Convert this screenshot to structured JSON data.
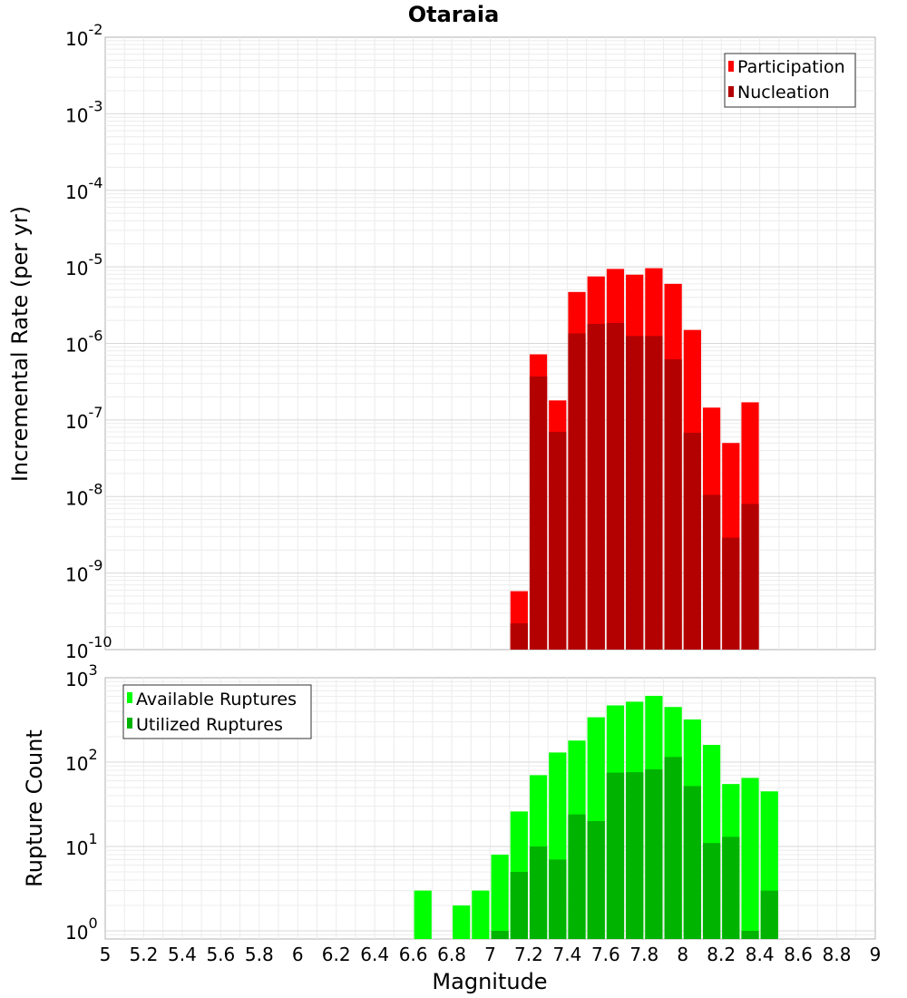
{
  "chart_data": [
    {
      "type": "bar",
      "title": "Otaraia",
      "ylabel": "Incremental Rate (per yr)",
      "yscale": "log",
      "ylim": [
        1e-10,
        0.01
      ],
      "xlim": [
        5,
        9
      ],
      "legend_position": "top-right",
      "x": [
        7.15,
        7.25,
        7.35,
        7.45,
        7.55,
        7.65,
        7.75,
        7.85,
        7.95,
        8.05,
        8.15,
        8.25,
        8.35
      ],
      "series": [
        {
          "name": "Participation",
          "color": "#ff0000",
          "values": [
            5.8e-10,
            7.2e-07,
            1.8e-07,
            4.7e-06,
            7.5e-06,
            9.4e-06,
            7.9e-06,
            9.6e-06,
            6e-06,
            1.5e-06,
            1.45e-07,
            5e-08,
            1.7e-07
          ]
        },
        {
          "name": "Nucleation",
          "color": "#b30000",
          "values": [
            2.2e-10,
            3.7e-07,
            7e-08,
            1.35e-06,
            1.8e-06,
            1.85e-06,
            1.25e-06,
            1.25e-06,
            6.2e-07,
            6.8e-08,
            1.05e-08,
            2.9e-09,
            8e-09
          ]
        }
      ]
    },
    {
      "type": "bar",
      "title": "",
      "xlabel": "Magnitude",
      "ylabel": "Rupture Count",
      "yscale": "log",
      "ylim": [
        0.8,
        1000
      ],
      "xlim": [
        5,
        9
      ],
      "legend_position": "top-left",
      "x": [
        6.65,
        6.75,
        6.85,
        6.95,
        7.05,
        7.15,
        7.25,
        7.35,
        7.45,
        7.55,
        7.65,
        7.75,
        7.85,
        7.95,
        8.05,
        8.15,
        8.25,
        8.35,
        8.45
      ],
      "series": [
        {
          "name": "Available Ruptures",
          "color": "#00ff00",
          "values": [
            3,
            0,
            2,
            3,
            8,
            26,
            70,
            130,
            180,
            340,
            470,
            520,
            610,
            450,
            320,
            160,
            55,
            65,
            45
          ]
        },
        {
          "name": "Utilized Ruptures",
          "color": "#00b300",
          "values": [
            0,
            0,
            0,
            0,
            1,
            5,
            10,
            7,
            24,
            20,
            75,
            76,
            82,
            115,
            52,
            11,
            13,
            1,
            3
          ]
        }
      ],
      "x_ticks": [
        "5",
        "5.2",
        "5.4",
        "5.6",
        "5.8",
        "6",
        "6.2",
        "6.4",
        "6.6",
        "6.8",
        "7",
        "7.2",
        "7.4",
        "7.6",
        "7.8",
        "8",
        "8.2",
        "8.4",
        "8.6",
        "8.8",
        "9"
      ]
    }
  ]
}
